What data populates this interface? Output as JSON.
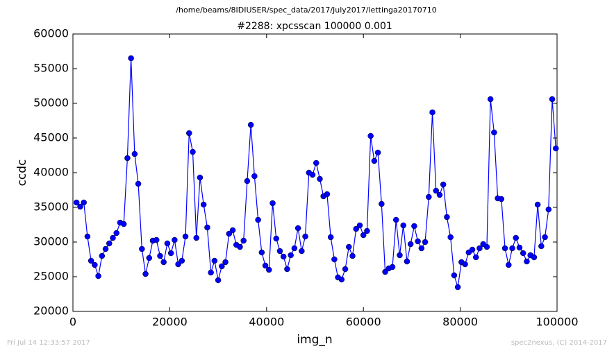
{
  "chart_data": {
    "type": "line",
    "suptitle": "/home/beams/8IDIUSER/spec_data/2017/July2017/lettinga20170710",
    "title": "#2288: xpcsscan 100000 0.001",
    "xlabel": "img_n",
    "ylabel": "ccdc",
    "footer_left": "Fri Jul 14 12:33:57 2017",
    "footer_right": "spec2nexus, (C) 2014-2017",
    "xlim": [
      0,
      100000
    ],
    "xticks": [
      0,
      20000,
      40000,
      60000,
      80000,
      100000
    ],
    "ylim": [
      20000,
      60000
    ],
    "yticks": [
      20000,
      25000,
      30000,
      35000,
      40000,
      45000,
      50000,
      55000,
      60000
    ],
    "x": [
      750,
      1500,
      2250,
      3000,
      3750,
      4500,
      5250,
      6000,
      6750,
      7500,
      8250,
      9000,
      9750,
      10500,
      11250,
      12000,
      12750,
      13500,
      14250,
      15000,
      15750,
      16500,
      17250,
      18000,
      18750,
      19500,
      20250,
      21000,
      21750,
      22500,
      23250,
      24000,
      24750,
      25500,
      26250,
      27000,
      27750,
      28500,
      29250,
      30000,
      30750,
      31500,
      32250,
      33000,
      33750,
      34500,
      35250,
      36000,
      36750,
      37500,
      38250,
      39000,
      39750,
      40500,
      41250,
      42000,
      42750,
      43500,
      44250,
      45000,
      45750,
      46500,
      47250,
      48000,
      48750,
      49500,
      50250,
      51000,
      51750,
      52500,
      53250,
      54000,
      54750,
      55500,
      56250,
      57000,
      57750,
      58500,
      59250,
      60000,
      60750,
      61500,
      62250,
      63000,
      63750,
      64500,
      65250,
      66000,
      66750,
      67500,
      68250,
      69000,
      69750,
      70500,
      71250,
      72000,
      72750,
      73500,
      74250,
      75000,
      75750,
      76500,
      77250,
      78000,
      78750,
      79500,
      80250,
      81000,
      81750,
      82500,
      83250,
      84000,
      84750,
      85500,
      86250,
      87000,
      87750,
      88500,
      89250,
      90000,
      90750,
      91500,
      92250,
      93000,
      93750,
      94500,
      95250,
      96000,
      96750,
      97500,
      98250,
      99000,
      99750
    ],
    "series": [
      {
        "color": "#0000ff",
        "values": [
          35700,
          35100,
          35700,
          30800,
          27300,
          26700,
          25100,
          28000,
          29000,
          29800,
          30600,
          31300,
          32800,
          32600,
          42100,
          56500,
          42700,
          38400,
          29000,
          25400,
          27700,
          30200,
          30300,
          28000,
          27100,
          29800,
          28400,
          30300,
          26800,
          27300,
          30800,
          45700,
          43000,
          30600,
          39300,
          35400,
          32100,
          25600,
          27300,
          24500,
          26500,
          27100,
          31200,
          31700,
          29600,
          29300,
          30200,
          38800,
          46900,
          39500,
          33200,
          28500,
          26600,
          26000,
          35600,
          30500,
          28700,
          27900,
          26100,
          28100,
          29100,
          32000,
          28700,
          30800,
          40000,
          39700,
          41400,
          39100,
          36600,
          36900,
          30700,
          27500,
          24900,
          24600,
          26100,
          29300,
          28000,
          31900,
          32400,
          31000,
          31600,
          45300,
          41700,
          42900,
          35500,
          25700,
          26200,
          26400,
          33200,
          28100,
          32400,
          27200,
          29700,
          32300,
          30100,
          29100,
          30000,
          36500,
          48700,
          37400,
          36800,
          38300,
          33600,
          30700,
          25200,
          23500,
          27100,
          26800,
          28500,
          28900,
          27800,
          29100,
          29700,
          29300,
          50600,
          45800,
          36300,
          36200,
          29100,
          26700,
          29100,
          30600,
          29200,
          28400,
          27200,
          28100,
          27800,
          35400,
          29400,
          30700,
          34700,
          50600,
          43500
        ]
      }
    ]
  }
}
